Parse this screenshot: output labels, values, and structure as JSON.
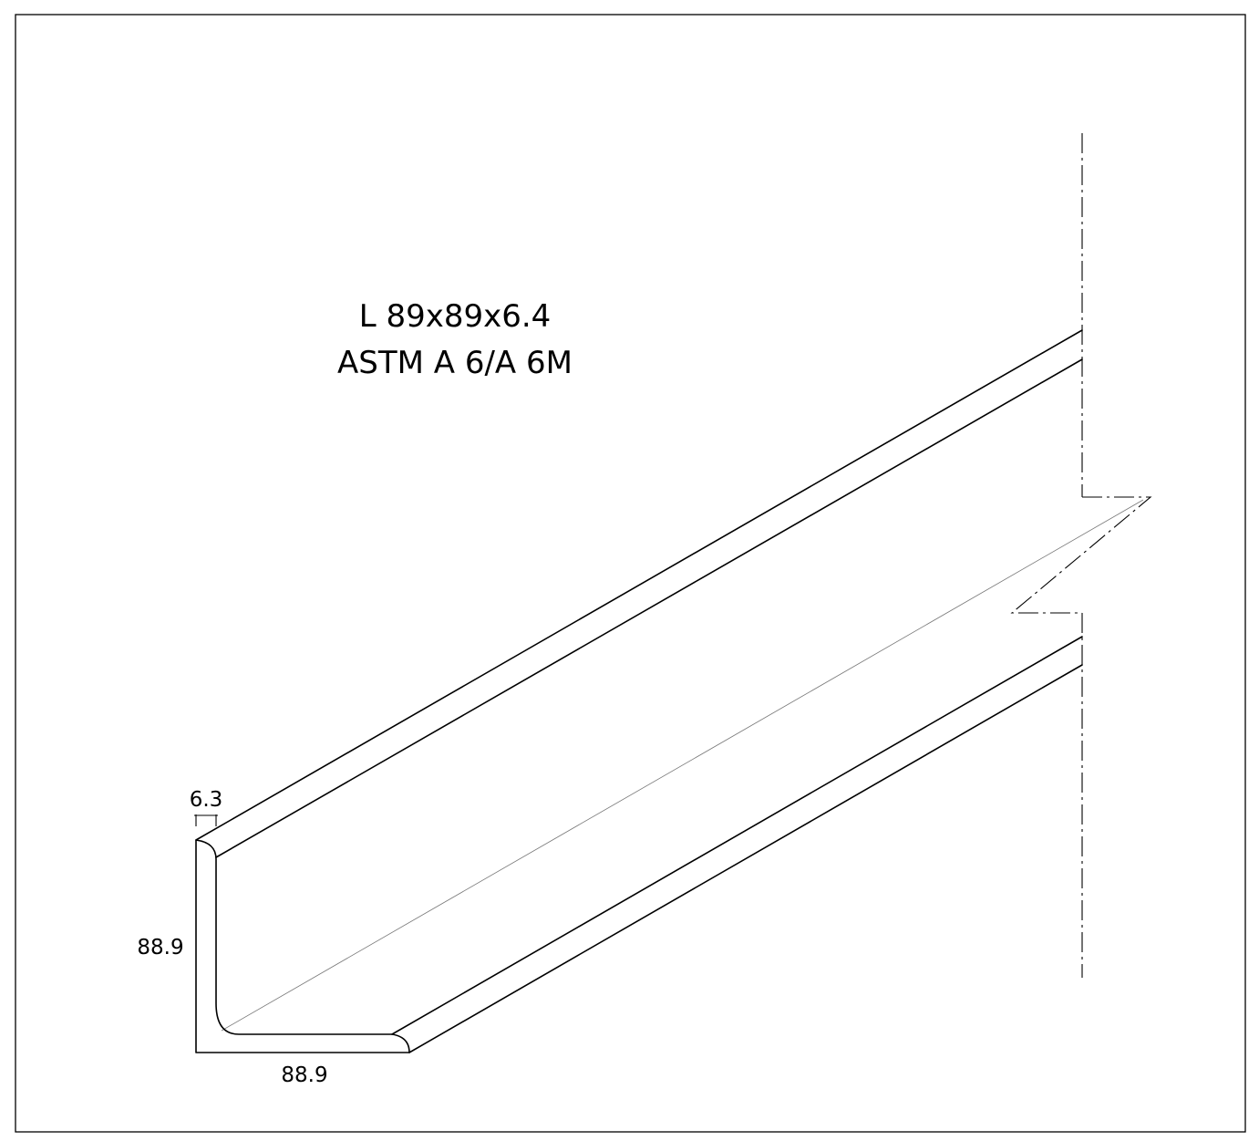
{
  "title": {
    "designation": "L 89x89x6.4",
    "standard": "ASTM A 6/A 6M"
  },
  "dimensions": {
    "thickness": "6.3",
    "height": "88.9",
    "width": "88.9"
  },
  "colors": {
    "line": "#000000",
    "background": "#ffffff"
  }
}
